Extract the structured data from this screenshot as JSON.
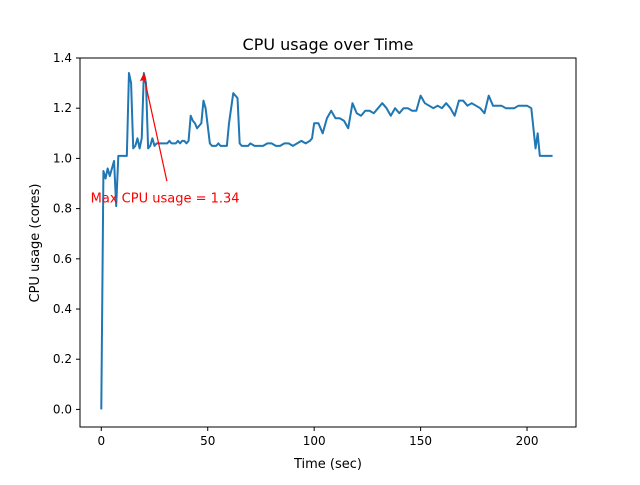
{
  "chart_data": {
    "type": "line",
    "title": "CPU usage over Time",
    "xlabel": "Time (sec)",
    "ylabel": "CPU usage (cores)",
    "xlim": [
      -10,
      223
    ],
    "ylim": [
      -0.07,
      1.4
    ],
    "xticks": [
      0,
      50,
      100,
      150,
      200
    ],
    "yticks": [
      0.0,
      0.2,
      0.4,
      0.6,
      0.8,
      1.0,
      1.2,
      1.4
    ],
    "grid": false,
    "colors": {
      "line": "#1f77b4",
      "annotation": "#ff0000",
      "axis": "#000000"
    },
    "annotation": {
      "text": "Max CPU usage = 1.34",
      "point": [
        20,
        1.34
      ],
      "text_pos": [
        -5,
        0.84
      ]
    },
    "series": [
      {
        "x": [
          0,
          1,
          2,
          3,
          4,
          5,
          6,
          7,
          8,
          9,
          10,
          11,
          12,
          13,
          14,
          15,
          16,
          17,
          18,
          19,
          20,
          21,
          22,
          23,
          24,
          25,
          26,
          27,
          28,
          29,
          30,
          31,
          32,
          33,
          34,
          35,
          36,
          37,
          38,
          39,
          40,
          41,
          42,
          43,
          44,
          45,
          46,
          47,
          48,
          49,
          50,
          51,
          52,
          53,
          54,
          55,
          56,
          57,
          58,
          59,
          60,
          61,
          62,
          63,
          64,
          65,
          66,
          67,
          68,
          69,
          70,
          72,
          74,
          76,
          78,
          80,
          82,
          84,
          86,
          88,
          90,
          92,
          94,
          96,
          98,
          99,
          100,
          102,
          104,
          106,
          108,
          110,
          112,
          114,
          116,
          118,
          120,
          122,
          124,
          126,
          128,
          130,
          132,
          134,
          136,
          138,
          140,
          142,
          144,
          146,
          148,
          150,
          152,
          154,
          156,
          158,
          160,
          162,
          164,
          166,
          168,
          170,
          172,
          174,
          176,
          178,
          180,
          182,
          184,
          186,
          188,
          190,
          192,
          194,
          196,
          198,
          200,
          202,
          204,
          205,
          206,
          207,
          208,
          210,
          212
        ],
        "y": [
          0.0,
          0.95,
          0.92,
          0.96,
          0.93,
          0.96,
          0.99,
          0.81,
          1.01,
          1.01,
          1.01,
          1.01,
          1.01,
          1.34,
          1.3,
          1.04,
          1.05,
          1.08,
          1.04,
          1.08,
          1.34,
          1.3,
          1.04,
          1.05,
          1.08,
          1.05,
          1.06,
          1.06,
          1.06,
          1.06,
          1.06,
          1.06,
          1.07,
          1.06,
          1.06,
          1.06,
          1.07,
          1.06,
          1.07,
          1.07,
          1.06,
          1.07,
          1.17,
          1.15,
          1.14,
          1.12,
          1.13,
          1.14,
          1.23,
          1.2,
          1.13,
          1.06,
          1.05,
          1.05,
          1.05,
          1.06,
          1.05,
          1.05,
          1.05,
          1.05,
          1.14,
          1.2,
          1.26,
          1.25,
          1.24,
          1.06,
          1.05,
          1.05,
          1.05,
          1.05,
          1.06,
          1.05,
          1.05,
          1.05,
          1.06,
          1.06,
          1.05,
          1.05,
          1.06,
          1.06,
          1.05,
          1.06,
          1.07,
          1.06,
          1.07,
          1.08,
          1.14,
          1.14,
          1.1,
          1.16,
          1.19,
          1.16,
          1.16,
          1.15,
          1.12,
          1.22,
          1.18,
          1.17,
          1.19,
          1.19,
          1.18,
          1.2,
          1.22,
          1.2,
          1.17,
          1.2,
          1.18,
          1.2,
          1.2,
          1.19,
          1.19,
          1.25,
          1.22,
          1.21,
          1.2,
          1.21,
          1.2,
          1.22,
          1.2,
          1.17,
          1.23,
          1.23,
          1.21,
          1.22,
          1.21,
          1.2,
          1.18,
          1.25,
          1.21,
          1.21,
          1.21,
          1.2,
          1.2,
          1.2,
          1.21,
          1.21,
          1.21,
          1.2,
          1.04,
          1.1,
          1.01,
          1.01,
          1.01,
          1.01,
          1.01
        ]
      }
    ]
  }
}
